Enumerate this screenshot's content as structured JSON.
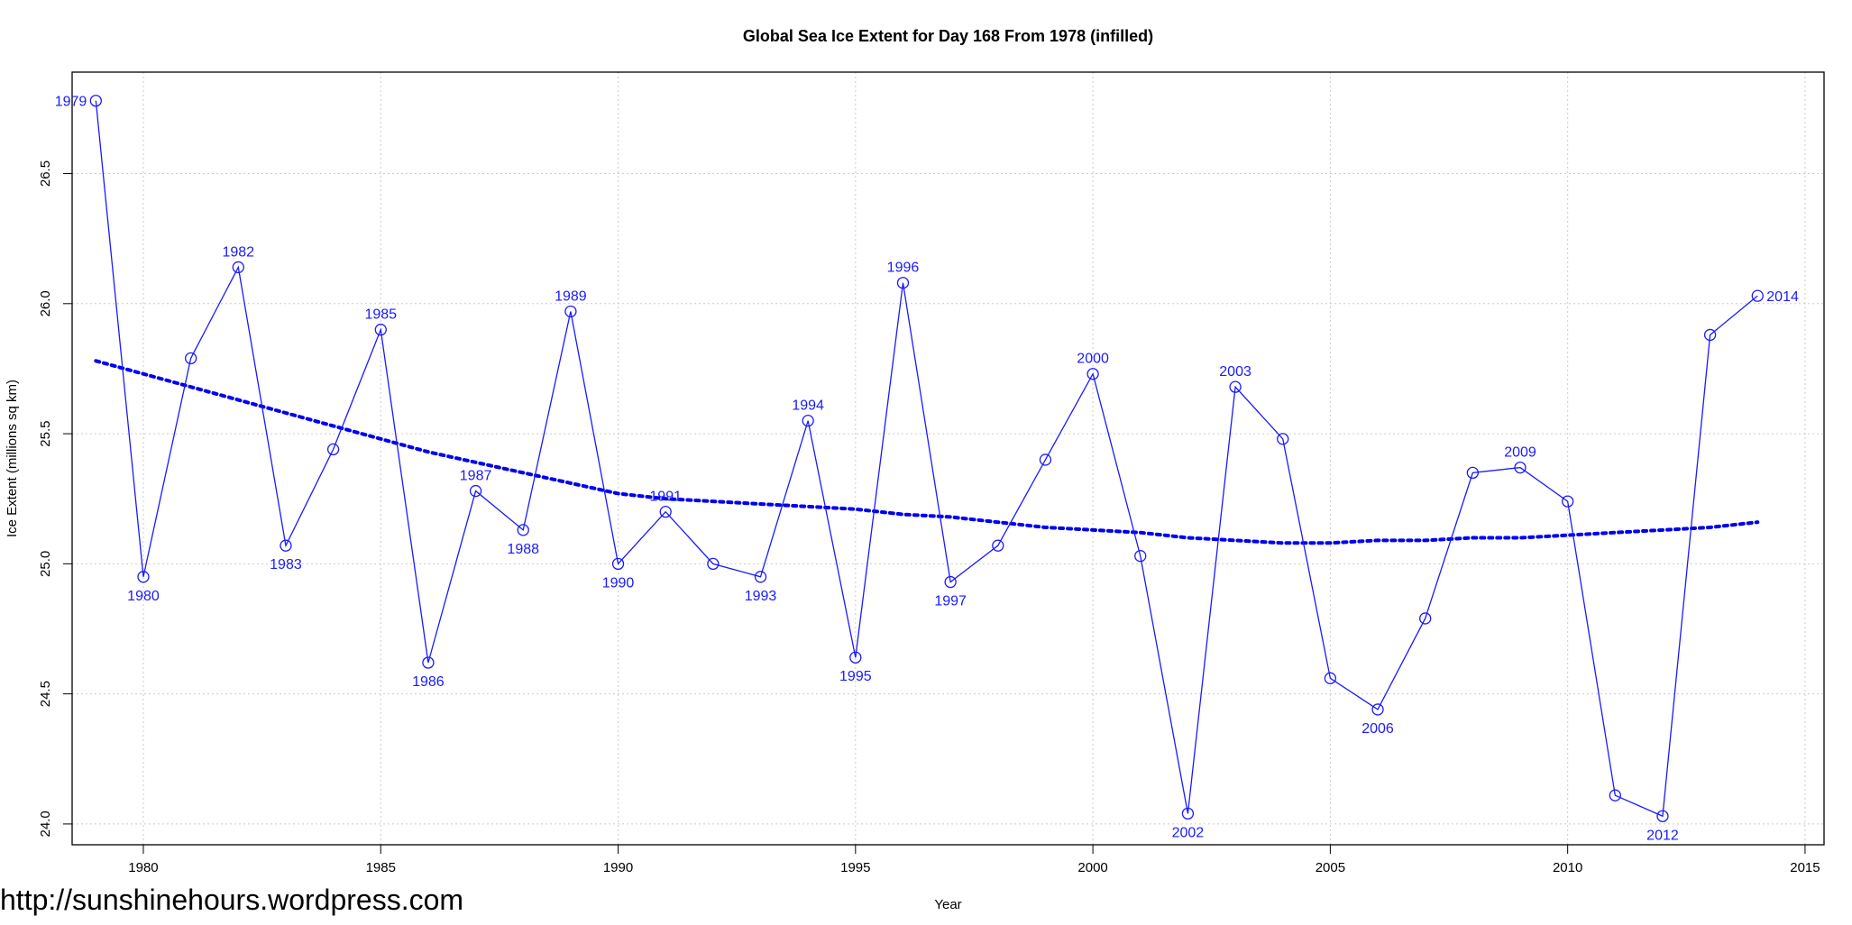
{
  "chart_data": {
    "type": "line",
    "title": "Global Sea Ice Extent for Day 168 From 1978 (infilled)",
    "xlabel": "Year",
    "ylabel": "Ice Extent (millions sq km)",
    "xlim": [
      1978.5,
      2015.4
    ],
    "ylim": [
      23.92,
      26.89
    ],
    "x_ticks": [
      1980,
      1985,
      1990,
      1995,
      2000,
      2005,
      2010,
      2015
    ],
    "y_ticks": [
      24.0,
      24.5,
      25.0,
      25.5,
      26.0,
      26.5
    ],
    "y_tick_labels": [
      "24.0",
      "24.5",
      "25.0",
      "25.5",
      "26.0",
      "26.5"
    ],
    "grid": true,
    "series_color": "#1a1aff",
    "trend_color": "#0000ee",
    "series": [
      {
        "x": [
          1979,
          1980,
          1981,
          1982,
          1983,
          1984,
          1985,
          1986,
          1987,
          1988,
          1989,
          1990,
          1991,
          1992,
          1993,
          1994,
          1995,
          1996,
          1997,
          1998,
          1999,
          2000,
          2001,
          2002,
          2003,
          2004,
          2005,
          2006,
          2007,
          2008,
          2009,
          2010,
          2011,
          2012,
          2013,
          2014
        ],
        "values": [
          26.78,
          24.95,
          25.79,
          26.14,
          25.07,
          25.44,
          25.9,
          24.62,
          25.28,
          25.13,
          25.97,
          25.0,
          25.2,
          25.0,
          24.95,
          25.55,
          24.64,
          26.08,
          24.93,
          25.07,
          25.4,
          25.73,
          25.03,
          24.04,
          25.68,
          25.48,
          24.56,
          24.44,
          24.79,
          25.35,
          25.37,
          25.24,
          24.11,
          24.03,
          25.88,
          26.03
        ]
      }
    ],
    "trend": {
      "x": [
        1979,
        1980,
        1981,
        1982,
        1983,
        1984,
        1985,
        1986,
        1987,
        1988,
        1989,
        1990,
        1991,
        1992,
        1993,
        1994,
        1995,
        1996,
        1997,
        1998,
        1999,
        2000,
        2001,
        2002,
        2003,
        2004,
        2005,
        2006,
        2007,
        2008,
        2009,
        2010,
        2011,
        2012,
        2013,
        2014
      ],
      "values": [
        25.78,
        25.73,
        25.68,
        25.63,
        25.58,
        25.53,
        25.48,
        25.43,
        25.39,
        25.35,
        25.31,
        25.27,
        25.25,
        25.24,
        25.23,
        25.22,
        25.21,
        25.19,
        25.18,
        25.16,
        25.14,
        25.13,
        25.12,
        25.1,
        25.09,
        25.08,
        25.08,
        25.09,
        25.09,
        25.1,
        25.1,
        25.11,
        25.12,
        25.13,
        25.14,
        25.16
      ]
    },
    "point_labels": [
      {
        "text": "1979",
        "x": 1979,
        "y": 26.78,
        "pos": "left"
      },
      {
        "text": "1980",
        "x": 1980,
        "y": 24.95,
        "pos": "below"
      },
      {
        "text": "1982",
        "x": 1982,
        "y": 26.14,
        "pos": "above"
      },
      {
        "text": "1983",
        "x": 1983,
        "y": 25.07,
        "pos": "below"
      },
      {
        "text": "1985",
        "x": 1985,
        "y": 25.9,
        "pos": "above"
      },
      {
        "text": "1986",
        "x": 1986,
        "y": 24.62,
        "pos": "below"
      },
      {
        "text": "1987",
        "x": 1987,
        "y": 25.28,
        "pos": "above"
      },
      {
        "text": "1988",
        "x": 1988,
        "y": 25.13,
        "pos": "below"
      },
      {
        "text": "1989",
        "x": 1989,
        "y": 25.97,
        "pos": "above"
      },
      {
        "text": "1990",
        "x": 1990,
        "y": 25.0,
        "pos": "below"
      },
      {
        "text": "1991",
        "x": 1991,
        "y": 25.2,
        "pos": "above"
      },
      {
        "text": "1993",
        "x": 1993,
        "y": 24.95,
        "pos": "below"
      },
      {
        "text": "1994",
        "x": 1994,
        "y": 25.55,
        "pos": "above"
      },
      {
        "text": "1995",
        "x": 1995,
        "y": 24.64,
        "pos": "below"
      },
      {
        "text": "1996",
        "x": 1996,
        "y": 26.08,
        "pos": "above"
      },
      {
        "text": "1997",
        "x": 1997,
        "y": 24.93,
        "pos": "below"
      },
      {
        "text": "2000",
        "x": 2000,
        "y": 25.73,
        "pos": "above"
      },
      {
        "text": "2002",
        "x": 2002,
        "y": 24.04,
        "pos": "below"
      },
      {
        "text": "2003",
        "x": 2003,
        "y": 25.68,
        "pos": "above"
      },
      {
        "text": "2006",
        "x": 2006,
        "y": 24.44,
        "pos": "below"
      },
      {
        "text": "2009",
        "x": 2009,
        "y": 25.37,
        "pos": "above"
      },
      {
        "text": "2012",
        "x": 2012,
        "y": 24.03,
        "pos": "below"
      },
      {
        "text": "2014",
        "x": 2014,
        "y": 26.03,
        "pos": "right"
      }
    ]
  },
  "watermark": "http://sunshinehours.wordpress.com"
}
